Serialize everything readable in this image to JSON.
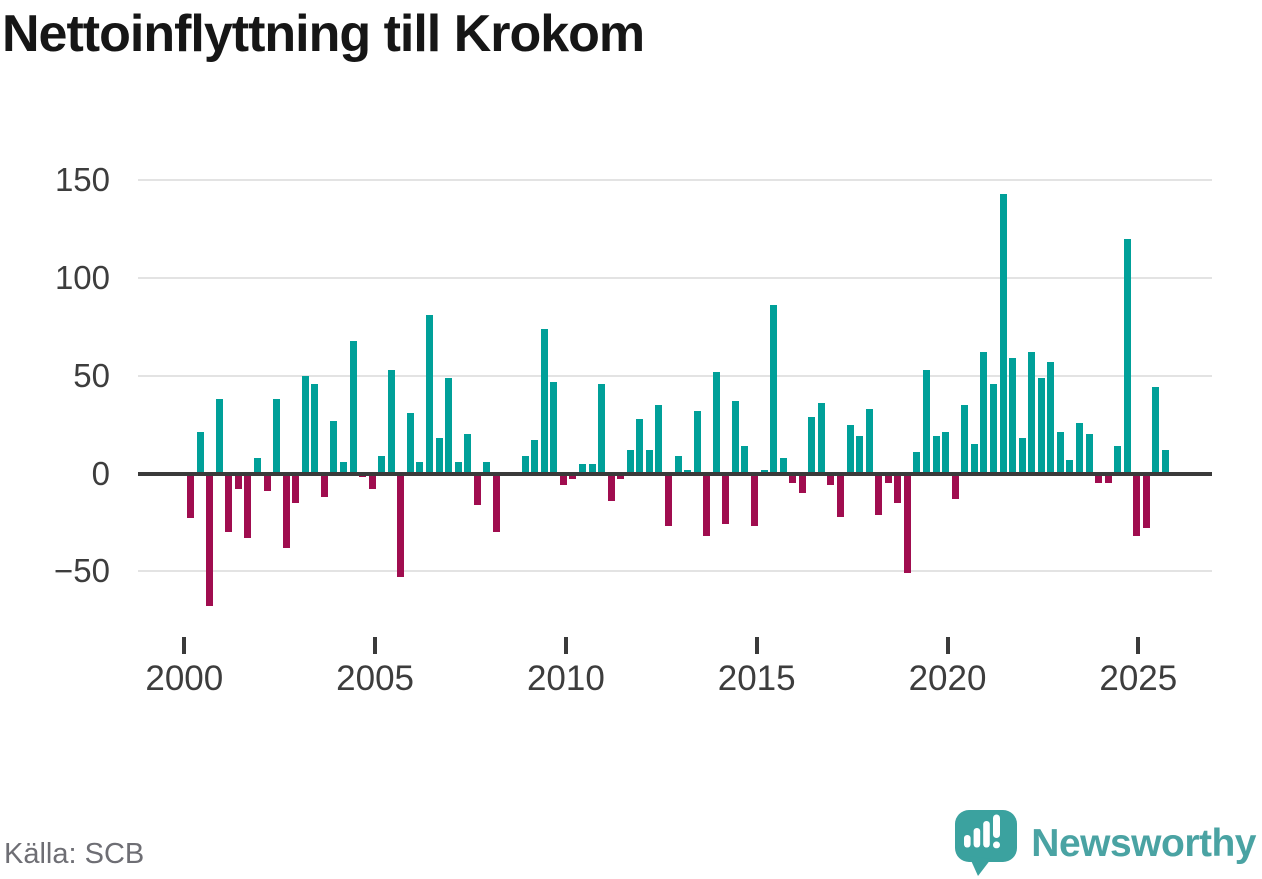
{
  "title": "Nettoinflyttning till Krokom",
  "source": "Källa: SCB",
  "branding": {
    "name": "Newsworthy"
  },
  "colors": {
    "positive": "#00A099",
    "negative": "#A00D4F",
    "axis": "#3a3a3a",
    "gridline": "#e3e3e3",
    "brand_teal": "#4aa3a3"
  },
  "chart_data": {
    "type": "bar",
    "title": "Nettoinflyttning till Krokom",
    "xlabel": "",
    "ylabel": "",
    "frequency": "quarterly",
    "start_year": 2000,
    "start_quarter": 1,
    "values": [
      -23,
      21,
      -68,
      38,
      -30,
      -8,
      -33,
      8,
      -9,
      38,
      -38,
      -15,
      50,
      46,
      -12,
      27,
      6,
      68,
      -2,
      -8,
      9,
      53,
      -53,
      31,
      6,
      81,
      18,
      49,
      6,
      20,
      -16,
      6,
      -30,
      0,
      0,
      9,
      17,
      74,
      47,
      -6,
      -3,
      5,
      5,
      46,
      -14,
      -3,
      12,
      28,
      12,
      35,
      -27,
      9,
      2,
      32,
      -32,
      52,
      -26,
      37,
      14,
      -27,
      2,
      86,
      8,
      -5,
      -10,
      29,
      36,
      -6,
      -22,
      25,
      19,
      33,
      -21,
      -5,
      -15,
      -51,
      11,
      53,
      19,
      21,
      -13,
      35,
      15,
      62,
      46,
      143,
      59,
      18,
      62,
      49,
      57,
      21,
      7,
      26,
      20,
      -5,
      -5,
      14,
      120,
      -32,
      -28,
      44,
      12
    ],
    "x_ticks": [
      2000,
      2005,
      2010,
      2015,
      2020,
      2025
    ],
    "x_tick_labels": [
      "2000",
      "2005",
      "2010",
      "2015",
      "2020",
      "2025"
    ],
    "y_ticks": [
      150,
      100,
      50,
      0,
      -50
    ],
    "y_tick_labels": [
      "150",
      "100",
      "50",
      "0",
      "−50"
    ],
    "ylim": [
      -75,
      160
    ],
    "grid": "horizontal",
    "legend": "none",
    "positive_color": "#00A099",
    "negative_color": "#A00D4F"
  }
}
